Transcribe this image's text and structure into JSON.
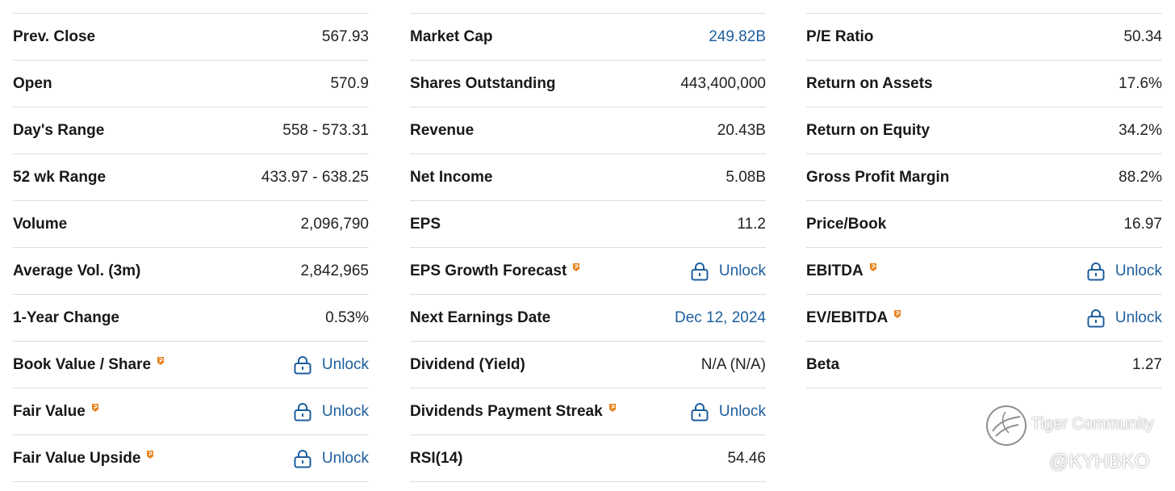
{
  "colors": {
    "link": "#1d5e9e",
    "pro_badge": "#e8831e"
  },
  "col1": [
    {
      "label": "Prev. Close",
      "value": "567.93"
    },
    {
      "label": "Open",
      "value": "570.9"
    },
    {
      "label": "Day's Range",
      "value": "558 - 573.31"
    },
    {
      "label": "52 wk Range",
      "value": "433.97 - 638.25"
    },
    {
      "label": "Volume",
      "value": "2,096,790"
    },
    {
      "label": "Average Vol. (3m)",
      "value": "2,842,965"
    },
    {
      "label": "1-Year Change",
      "value": "0.53%"
    },
    {
      "label": "Book Value / Share",
      "value": "Unlock"
    },
    {
      "label": "Fair Value",
      "value": "Unlock"
    },
    {
      "label": "Fair Value Upside",
      "value": "Unlock"
    }
  ],
  "col2": [
    {
      "label": "Market Cap",
      "value": "249.82B"
    },
    {
      "label": "Shares Outstanding",
      "value": "443,400,000"
    },
    {
      "label": "Revenue",
      "value": "20.43B"
    },
    {
      "label": "Net Income",
      "value": "5.08B"
    },
    {
      "label": "EPS",
      "value": "11.2"
    },
    {
      "label": "EPS Growth Forecast",
      "value": "Unlock"
    },
    {
      "label": "Next Earnings Date",
      "value": "Dec 12, 2024"
    },
    {
      "label": "Dividend (Yield)",
      "value": "N/A (N/A)"
    },
    {
      "label": "Dividends Payment Streak",
      "value": "Unlock"
    },
    {
      "label": "RSI(14)",
      "value": "54.46"
    }
  ],
  "col3": [
    {
      "label": "P/E Ratio",
      "value": "50.34"
    },
    {
      "label": "Return on Assets",
      "value": "17.6%"
    },
    {
      "label": "Return on Equity",
      "value": "34.2%"
    },
    {
      "label": "Gross Profit Margin",
      "value": "88.2%"
    },
    {
      "label": "Price/Book",
      "value": "16.97"
    },
    {
      "label": "EBITDA",
      "value": "Unlock"
    },
    {
      "label": "EV/EBITDA",
      "value": "Unlock"
    },
    {
      "label": "Beta",
      "value": "1.27"
    }
  ],
  "watermark": {
    "brand": "Tiger Community",
    "user": "@KYHBKO"
  }
}
